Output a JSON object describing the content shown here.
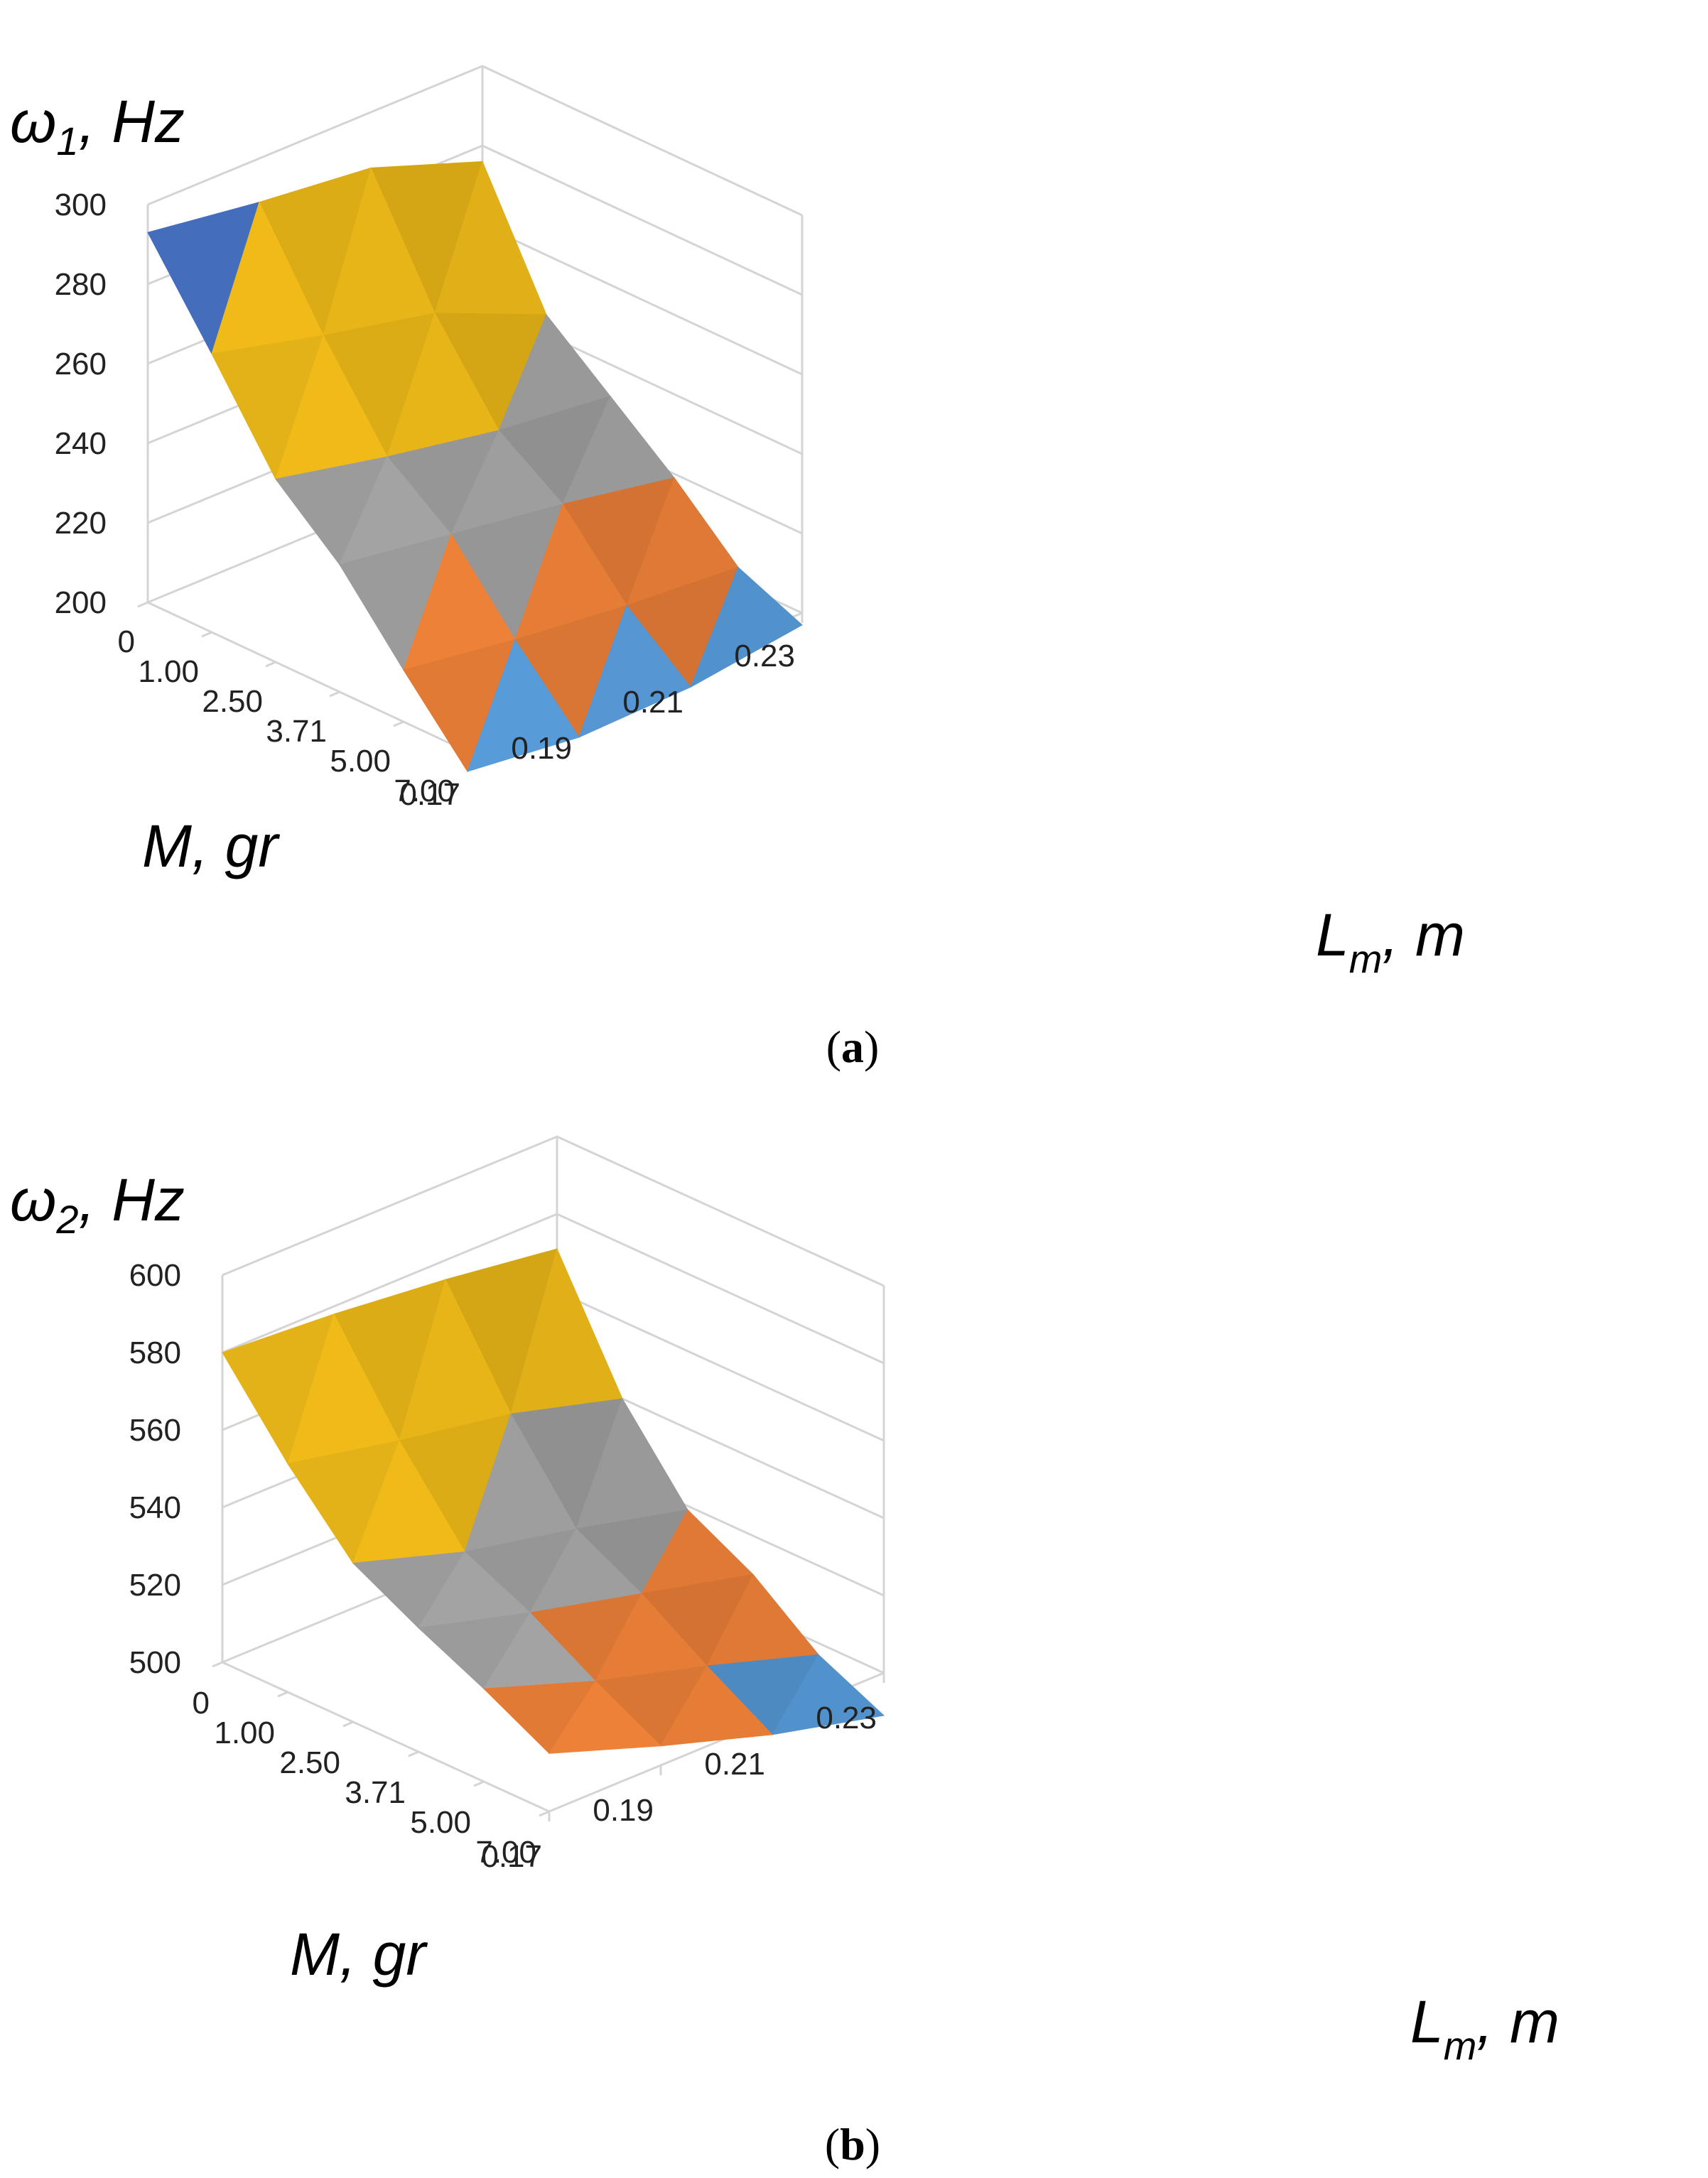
{
  "chart_data": [
    {
      "type": "surface",
      "panel": "a",
      "caption": "(a)",
      "z_label": {
        "symbol": "ω",
        "sub": "1",
        "rest": ", Hz"
      },
      "y_label": "M, gr",
      "x_label": {
        "symbol": "L",
        "sub": "m",
        "rest": ", m"
      },
      "z_ticks": [
        "300",
        "280",
        "260",
        "240",
        "220",
        "200"
      ],
      "z_range": [
        200,
        300
      ],
      "mass_ticks": [
        "0",
        "1.00",
        "2.50",
        "3.71",
        "5.00",
        "7.00"
      ],
      "length_ticks": [
        "0.17",
        "0.19",
        "0.21",
        "0.23"
      ],
      "color_bands": [
        {
          "range": [
            180,
            200
          ],
          "color": "#5aa0e0"
        },
        {
          "range": [
            200,
            220
          ],
          "color": "#f5853a"
        },
        {
          "range": [
            220,
            240
          ],
          "color": "#a8a8a8"
        },
        {
          "range": [
            240,
            260
          ],
          "color": "#f7c11a"
        },
        {
          "range": [
            260,
            280
          ],
          "color": "#f7c11a"
        },
        {
          "range": [
            280,
            300
          ],
          "color": "#4a76cc"
        }
      ],
      "values_rows_by_mass_cols_by_length": [
        [
          293,
          289,
          286,
          276
        ],
        [
          270,
          263,
          257,
          245
        ],
        [
          246,
          240,
          235,
          232
        ],
        [
          232,
          228,
          224,
          219
        ],
        [
          213,
          209,
          206,
          204
        ],
        [
          195,
          192,
          193,
          197
        ]
      ]
    },
    {
      "type": "surface",
      "panel": "b",
      "caption": "(b)",
      "z_label": {
        "symbol": "ω",
        "sub": "2",
        "rest": ", Hz"
      },
      "y_label": "M, gr",
      "x_label": {
        "symbol": "L",
        "sub": "m",
        "rest": ", m"
      },
      "z_ticks": [
        "600",
        "580",
        "560",
        "540",
        "520",
        "500"
      ],
      "z_range": [
        500,
        600
      ],
      "mass_ticks": [
        "0",
        "1.00",
        "2.50",
        "3.71",
        "5.00",
        "7.00"
      ],
      "length_ticks": [
        "0.17",
        "0.19",
        "0.21",
        "0.23"
      ],
      "color_bands": [
        {
          "range": [
            480,
            500
          ],
          "color": "#5aa0e0"
        },
        {
          "range": [
            500,
            520
          ],
          "color": "#f5853a"
        },
        {
          "range": [
            520,
            540
          ],
          "color": "#a8a8a8"
        },
        {
          "range": [
            540,
            560
          ],
          "color": "#f7c11a"
        },
        {
          "range": [
            560,
            580
          ],
          "color": "#f7c11a"
        },
        {
          "range": [
            580,
            600
          ],
          "color": "#4a76cc"
        }
      ],
      "values_rows_by_mass_cols_by_length": [
        [
          580,
          578,
          575,
          571
        ],
        [
          559,
          553,
          548,
          540
        ],
        [
          541,
          532,
          526,
          519
        ],
        [
          532,
          524,
          517,
          510
        ],
        [
          524,
          514,
          506,
          497
        ],
        [
          515,
          505,
          496,
          489
        ]
      ]
    }
  ]
}
